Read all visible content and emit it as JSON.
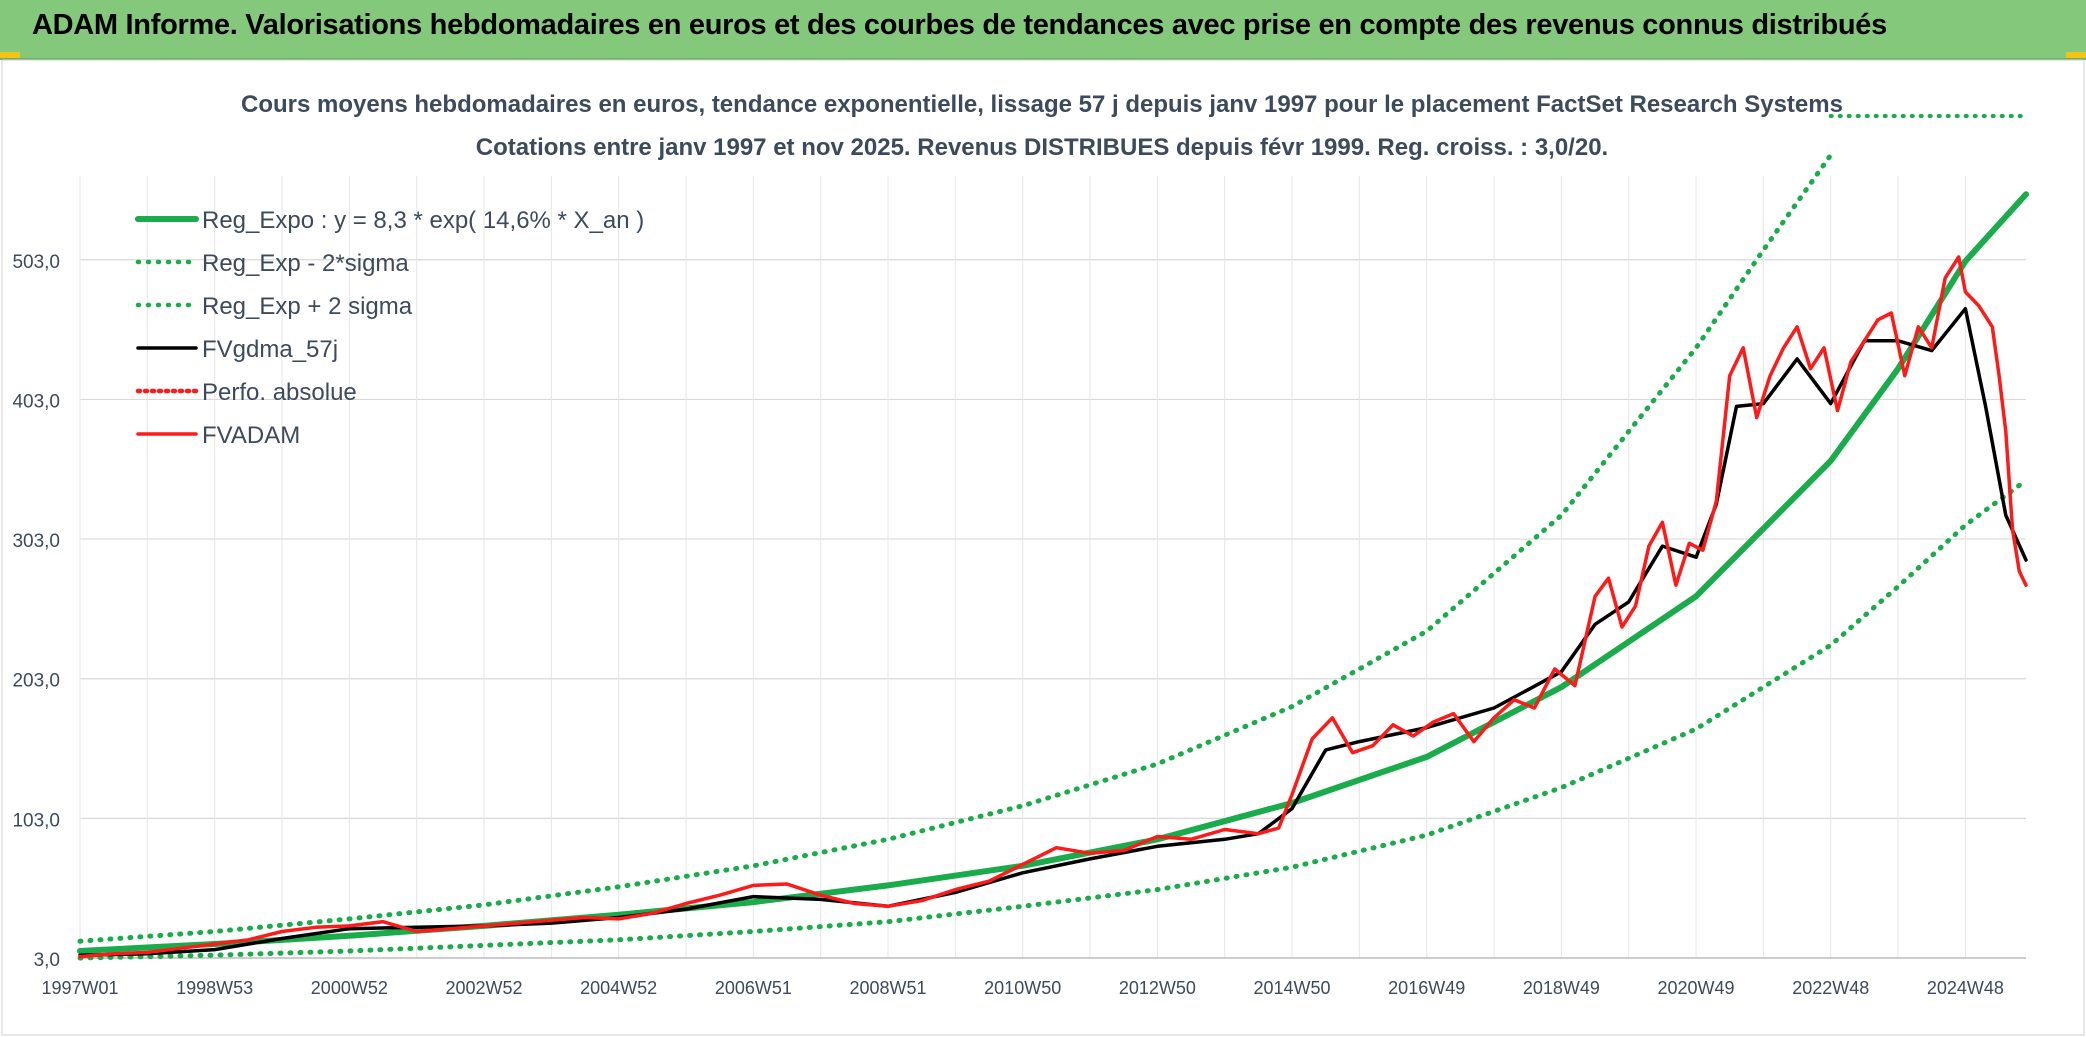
{
  "banner": {
    "title": "ADAM Informe. Valorisations hebdomadaires en euros et des courbes de tendances avec prise en compte des revenus connus distribués"
  },
  "colors": {
    "banner_bg": "#84c97b",
    "regression": "#1aac4a",
    "smoothed": "#000000",
    "price": "#ff1a1a",
    "grid": "#d9d9d9"
  },
  "chart_data": {
    "type": "line",
    "title": "Cours moyens hebdomadaires en euros, tendance exponentielle, lissage 57 j depuis janv 1997 pour le placement FactSet Research Systems",
    "subtitle": "Cotations entre janv 1997 et nov 2025. Revenus DISTRIBUES depuis févr 1999. Reg. croiss. : 3,0/20.",
    "xlabel": "",
    "ylabel": "",
    "x_tick_labels": [
      "1997W01",
      "1998W53",
      "2000W52",
      "2002W52",
      "2004W52",
      "2006W51",
      "2008W51",
      "2010W50",
      "2012W50",
      "2014W50",
      "2016W49",
      "2018W49",
      "2020W49",
      "2022W48",
      "2024W48"
    ],
    "x_tick_years": [
      1997.0,
      1999.0,
      2001.0,
      2003.0,
      2005.0,
      2007.0,
      2009.0,
      2011.0,
      2013.0,
      2015.0,
      2017.0,
      2019.0,
      2021.0,
      2023.0,
      2025.0
    ],
    "xlim": [
      1997.0,
      2025.9
    ],
    "y_tick_labels": [
      "3,0",
      "103,0",
      "203,0",
      "303,0",
      "403,0",
      "503,0"
    ],
    "y_ticks": [
      3,
      103,
      203,
      303,
      403,
      503
    ],
    "ylim": [
      3,
      563
    ],
    "grid": true,
    "legend_position": "top-left",
    "legend": [
      {
        "label": "Reg_Expo : y = 8,3 * exp( 14,6% *  X_an )",
        "style": "solid",
        "color": "#1aac4a"
      },
      {
        "label": "Reg_Exp - 2*sigma",
        "style": "dotted",
        "color": "#1aac4a"
      },
      {
        "label": "Reg_Exp + 2 sigma",
        "style": "dotted",
        "color": "#1aac4a"
      },
      {
        "label": "FVgdma_57j",
        "style": "solid",
        "color": "#000000"
      },
      {
        "label": "Perfo. absolue",
        "style": "dotted",
        "color": "#ff1a1a"
      },
      {
        "label": "FVADAM",
        "style": "solid",
        "color": "#ff1a1a"
      }
    ],
    "series": [
      {
        "name": "Reg_Expo : y = 8,3 * exp( 14,6% *  X_an )",
        "x": [
          1997.0,
          1999.0,
          2001.0,
          2003.0,
          2005.0,
          2007.0,
          2009.0,
          2011.0,
          2013.0,
          2015.0,
          2017.0,
          2019.0,
          2021.0,
          2023.0,
          2024.0,
          2025.0,
          2025.9
        ],
        "y": [
          8,
          13,
          19,
          26,
          34,
          43,
          55,
          69,
          88,
          114,
          147,
          197,
          262,
          359,
          425,
          502,
          550
        ]
      },
      {
        "name": "Reg_Exp - 2*sigma",
        "x": [
          1997.0,
          1999.0,
          2001.0,
          2003.0,
          2005.0,
          2007.0,
          2009.0,
          2011.0,
          2013.0,
          2015.0,
          2017.0,
          2019.0,
          2021.0,
          2023.0,
          2024.0,
          2025.0,
          2025.9
        ],
        "y": [
          3,
          5,
          8,
          12,
          16,
          22,
          29,
          40,
          52,
          68,
          91,
          125,
          167,
          227,
          269,
          313,
          345
        ]
      },
      {
        "name": "Reg_Exp + 2 sigma",
        "x": [
          1997.0,
          1999.0,
          2001.0,
          2003.0,
          2005.0,
          2007.0,
          2009.0,
          2011.0,
          2013.0,
          2015.0,
          2017.0,
          2019.0,
          2020.0,
          2021.0,
          2022.0,
          2023.0
        ],
        "y": [
          15,
          22,
          31,
          41,
          54,
          69,
          88,
          112,
          142,
          183,
          237,
          320,
          380,
          440,
          510,
          578
        ]
      },
      {
        "name": "FVgdma_57j",
        "x": [
          1997.0,
          1998.0,
          1999.0,
          2000.0,
          2001.0,
          2002.0,
          2003.0,
          2004.0,
          2005.0,
          2006.0,
          2007.0,
          2008.0,
          2009.0,
          2010.0,
          2011.0,
          2012.0,
          2013.0,
          2014.0,
          2014.5,
          2015.0,
          2015.5,
          2016.0,
          2017.0,
          2018.0,
          2019.0,
          2019.5,
          2020.0,
          2020.5,
          2021.0,
          2021.3,
          2021.6,
          2022.0,
          2022.5,
          2023.0,
          2023.5,
          2024.0,
          2024.5,
          2025.0,
          2025.3,
          2025.6,
          2025.9
        ],
        "y": [
          5,
          6,
          9,
          17,
          24,
          25,
          26,
          28,
          32,
          38,
          47,
          45,
          40,
          50,
          64,
          74,
          83,
          88,
          92,
          110,
          152,
          158,
          168,
          182,
          208,
          242,
          258,
          298,
          290,
          328,
          398,
          400,
          432,
          400,
          445,
          445,
          438,
          468,
          398,
          320,
          288
        ]
      },
      {
        "name": "Perfo. absolue",
        "x": [],
        "y": []
      },
      {
        "name": "FVADAM",
        "x": [
          1997.0,
          1997.5,
          1998.0,
          1998.5,
          1999.0,
          1999.5,
          2000.0,
          2000.5,
          2001.0,
          2001.5,
          2002.0,
          2002.5,
          2003.0,
          2003.5,
          2004.0,
          2004.5,
          2005.0,
          2005.5,
          2006.0,
          2006.5,
          2007.0,
          2007.5,
          2008.0,
          2008.5,
          2009.0,
          2009.5,
          2010.0,
          2010.5,
          2011.0,
          2011.5,
          2012.0,
          2012.5,
          2013.0,
          2013.5,
          2014.0,
          2014.5,
          2014.8,
          2015.0,
          2015.3,
          2015.6,
          2015.9,
          2016.2,
          2016.5,
          2016.8,
          2017.1,
          2017.4,
          2017.7,
          2018.0,
          2018.3,
          2018.6,
          2018.9,
          2019.2,
          2019.5,
          2019.7,
          2019.9,
          2020.1,
          2020.3,
          2020.5,
          2020.7,
          2020.9,
          2021.1,
          2021.3,
          2021.5,
          2021.7,
          2021.9,
          2022.1,
          2022.3,
          2022.5,
          2022.7,
          2022.9,
          2023.1,
          2023.3,
          2023.5,
          2023.7,
          2023.9,
          2024.1,
          2024.3,
          2024.5,
          2024.7,
          2024.9,
          2025.0,
          2025.2,
          2025.4,
          2025.5,
          2025.6,
          2025.7,
          2025.8,
          2025.9
        ],
        "y": [
          4,
          6,
          7,
          10,
          13,
          16,
          22,
          25,
          26,
          29,
          22,
          24,
          26,
          28,
          30,
          32,
          31,
          35,
          42,
          48,
          55,
          56,
          48,
          42,
          40,
          44,
          52,
          58,
          70,
          82,
          78,
          80,
          90,
          88,
          95,
          92,
          96,
          120,
          160,
          175,
          150,
          155,
          170,
          162,
          172,
          178,
          158,
          175,
          188,
          182,
          210,
          198,
          262,
          275,
          240,
          255,
          298,
          315,
          270,
          300,
          295,
          330,
          420,
          440,
          390,
          420,
          440,
          455,
          425,
          440,
          395,
          430,
          445,
          460,
          465,
          420,
          455,
          440,
          490,
          505,
          480,
          470,
          455,
          420,
          380,
          310,
          280,
          270
        ]
      }
    ]
  }
}
